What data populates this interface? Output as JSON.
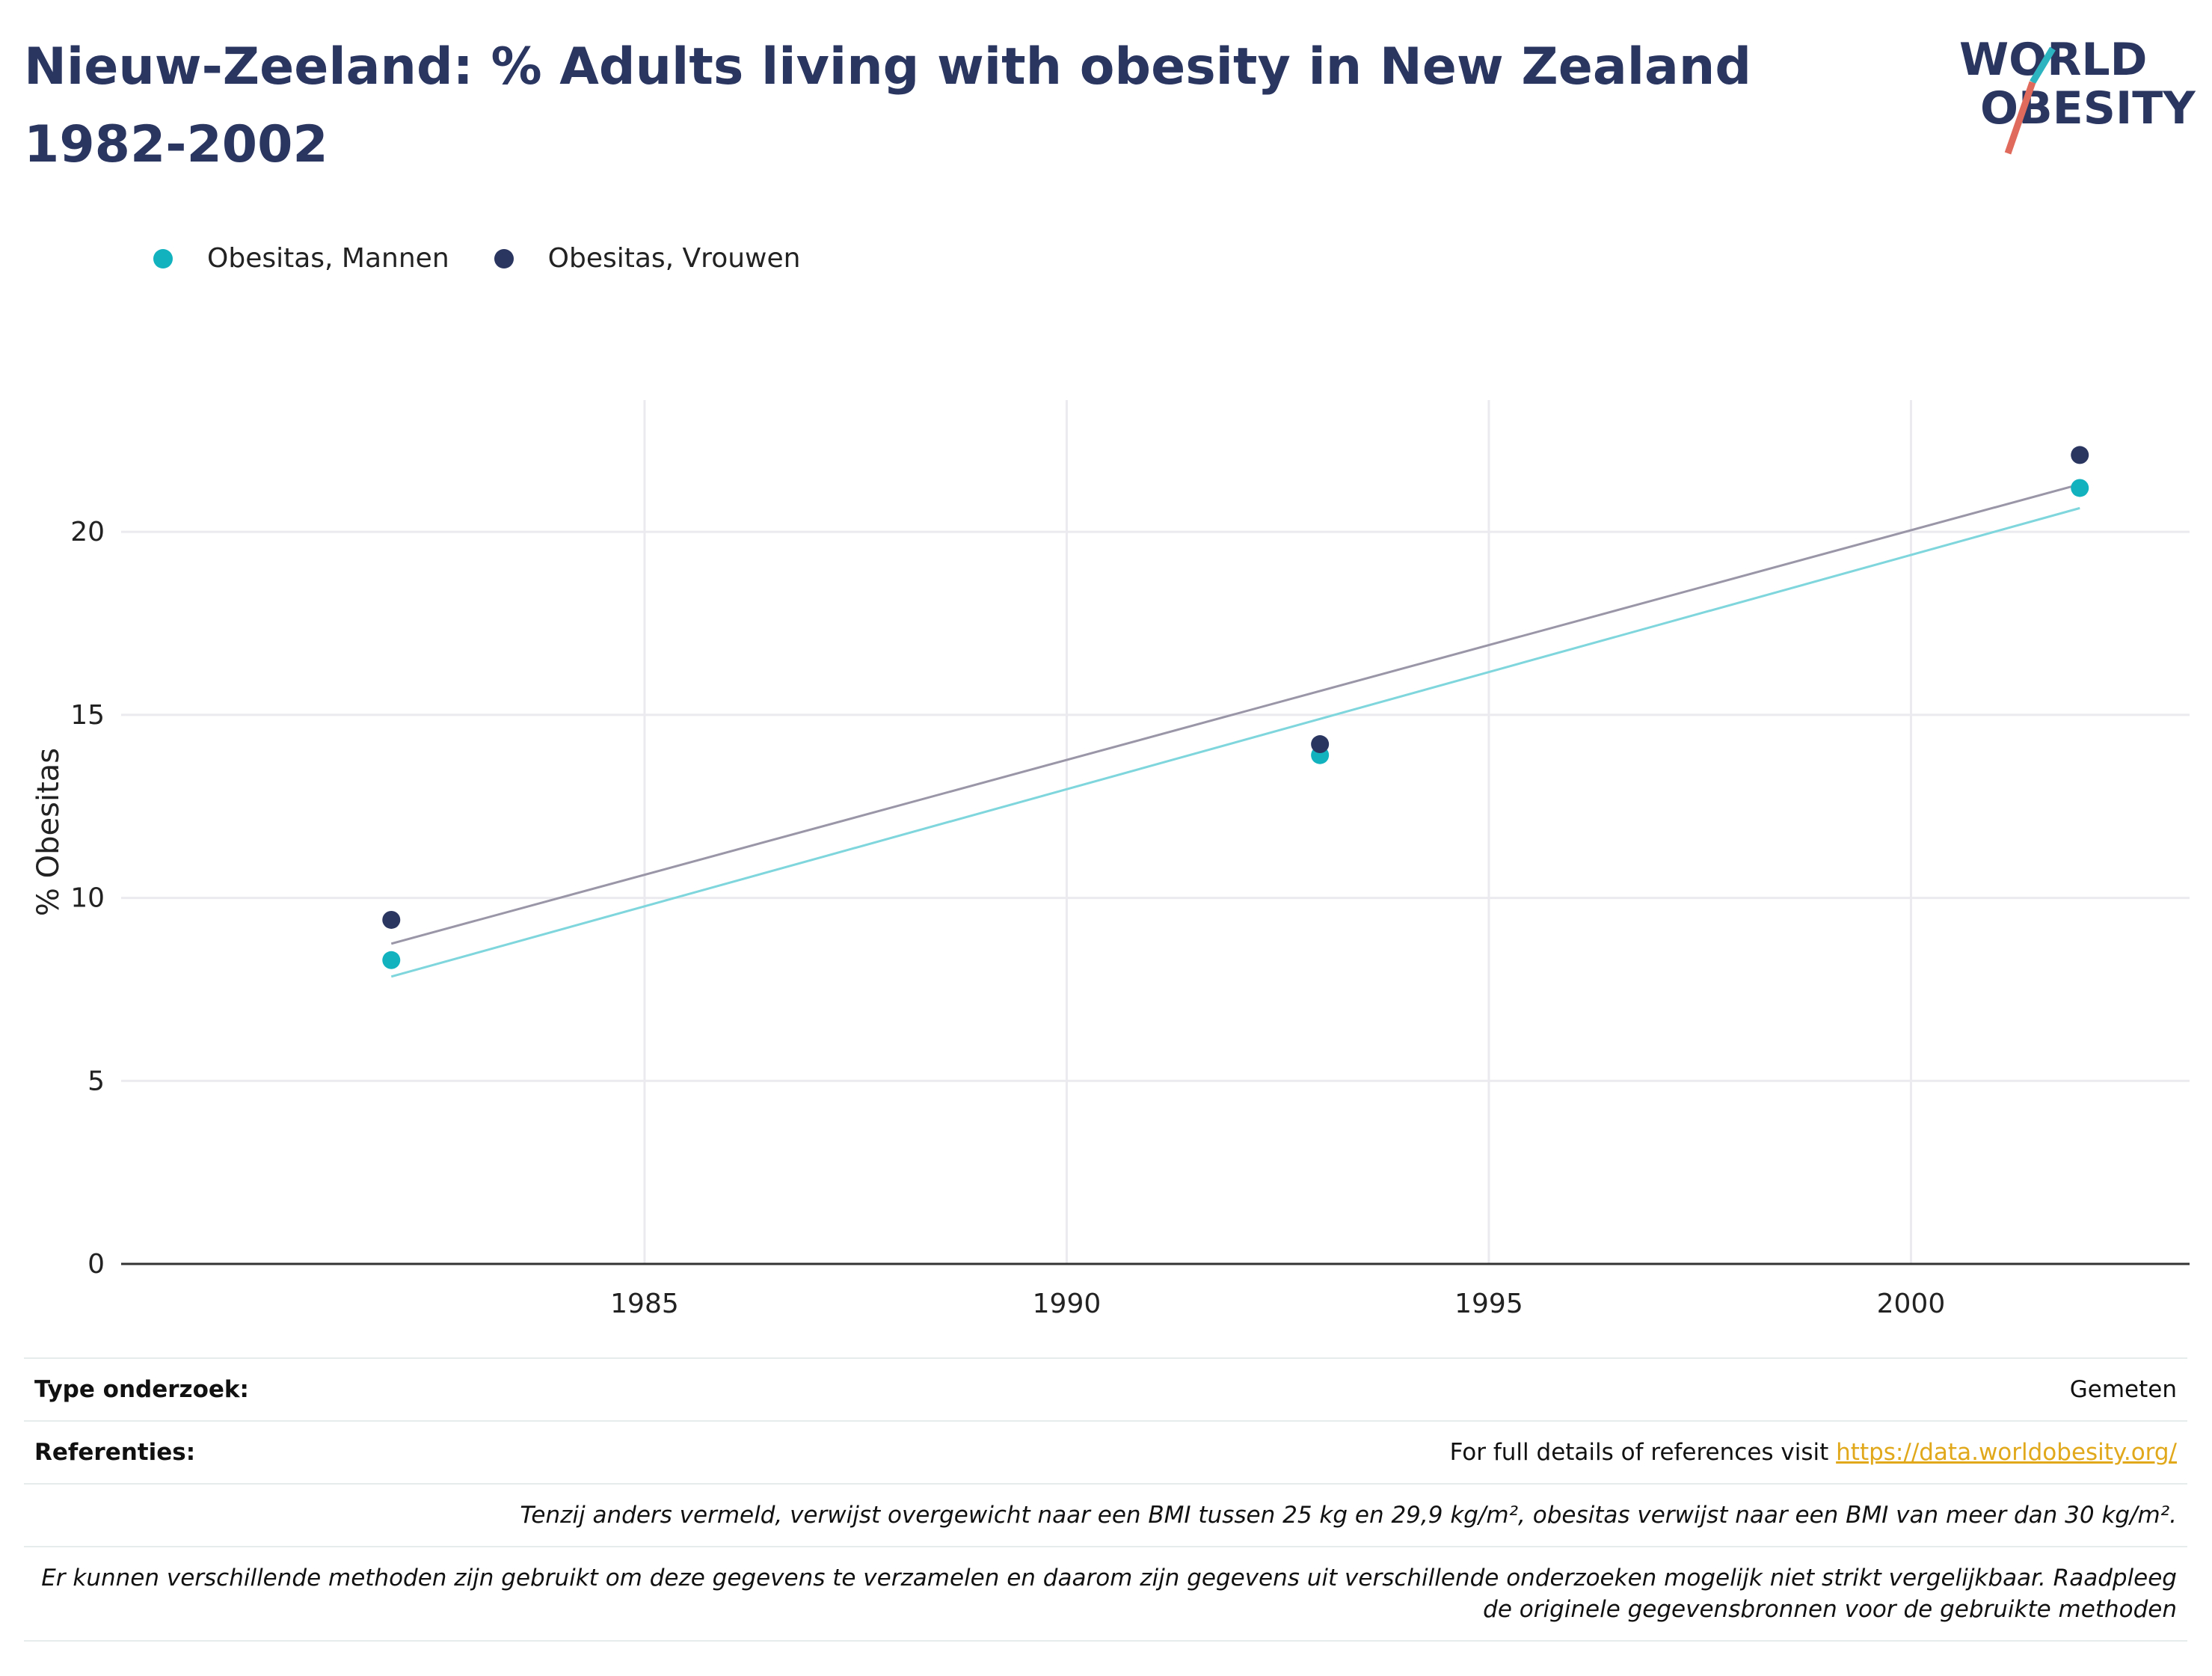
{
  "title": "Nieuw-Zeeland: % Adults living with obesity in New Zealand 1982-2002",
  "logo": {
    "line1": "WORLD",
    "line2": "OBESITY",
    "colors": {
      "text": "#2a3560",
      "slash_teal": "#2cb5c0",
      "slash_red": "#e06b5c"
    }
  },
  "colors": {
    "men": "#12b2bf",
    "women": "#2a3560",
    "men_trend": "#7fd6dc",
    "women_trend": "#9a96a8",
    "grid": "#ebebef",
    "axis": "#333333"
  },
  "chart_data": {
    "type": "scatter",
    "series": [
      {
        "name": "Obesitas, Mannen",
        "x": [
          1982,
          1993,
          2002
        ],
        "y": [
          8.3,
          13.9,
          21.2
        ],
        "trend": [
          [
            1982,
            7.85
          ],
          [
            2002,
            20.65
          ]
        ]
      },
      {
        "name": "Obesitas, Vrouwen",
        "x": [
          1982,
          1993,
          2002
        ],
        "y": [
          9.4,
          14.2,
          22.1
        ],
        "trend": [
          [
            1982,
            8.75
          ],
          [
            2002,
            21.3
          ]
        ]
      }
    ],
    "xlim": [
      1978.8,
      2003.3
    ],
    "ylim": [
      0,
      23.6
    ],
    "xticks": [
      1985,
      1990,
      1995,
      2000
    ],
    "yticks": [
      0,
      5,
      10,
      15,
      20
    ],
    "xlabel": "",
    "ylabel": "% Obesitas",
    "grid": true,
    "legend": "top-left"
  },
  "info": {
    "type_label": "Type onderzoek:",
    "type_value": "Gemeten",
    "ref_label": "Referenties:",
    "ref_text": "For full details of references visit ",
    "ref_link": "https://data.worldobesity.org/",
    "note1": "Tenzij anders vermeld, verwijst overgewicht naar een BMI tussen 25 kg en 29,9 kg/m², obesitas verwijst naar een BMI van meer dan 30 kg/m².",
    "note2": "Er kunnen verschillende methoden zijn gebruikt om deze gegevens te verzamelen en daarom zijn gegevens uit verschillende onderzoeken mogelijk niet strikt vergelijkbaar. Raadpleeg de originele gegevensbronnen voor de gebruikte methoden"
  }
}
